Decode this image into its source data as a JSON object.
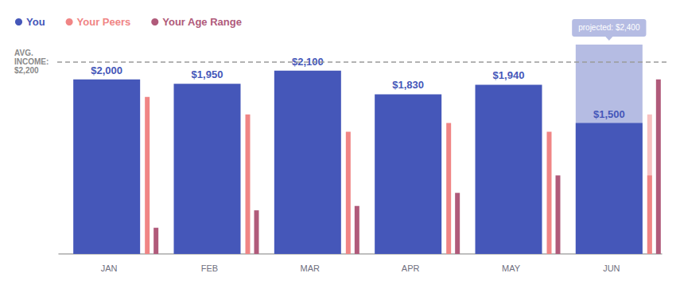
{
  "chart_data": {
    "type": "bar",
    "categories": [
      "JAN",
      "FEB",
      "MAR",
      "APR",
      "MAY",
      "JUN"
    ],
    "series": [
      {
        "name": "You",
        "color": "#4557b9",
        "values": [
          2000,
          1950,
          2100,
          1830,
          1940,
          1500
        ],
        "value_labels": [
          "$2,000",
          "$1,950",
          "$2,100",
          "$1,830",
          "$1,940",
          "$1,500"
        ],
        "data_labels": true,
        "projected": [
          null,
          null,
          null,
          null,
          null,
          2400
        ]
      },
      {
        "name": "Your Peers",
        "color": "#f08585",
        "values": [
          1800,
          1600,
          1400,
          1500,
          1400,
          900
        ],
        "projected": [
          null,
          null,
          null,
          null,
          null,
          1600
        ]
      },
      {
        "name": "Your Age Range",
        "color": "#b05a7a",
        "values": [
          300,
          500,
          550,
          700,
          900,
          2000
        ]
      }
    ],
    "annotations": [
      {
        "text": "projected: $2,400",
        "x": "JUN",
        "y": 2400
      }
    ],
    "reference_line": {
      "value": 2200,
      "label": "AVG. INCOME: $2,200"
    },
    "ylim": [
      0,
      2500
    ],
    "grid": false,
    "legend": "top-left",
    "tick_labels": "x"
  }
}
